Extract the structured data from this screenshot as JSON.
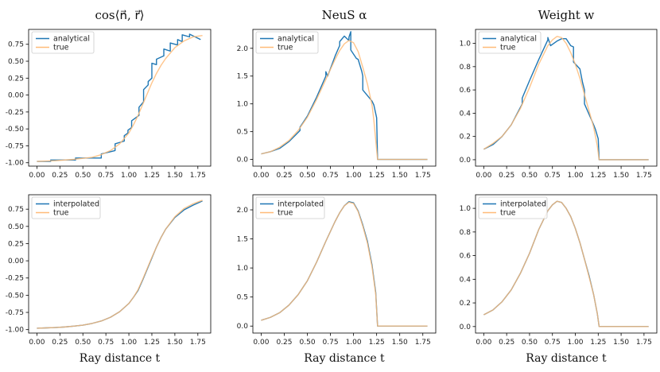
{
  "figure": {
    "column_titles": [
      "cos⟨n⃗, r⃗⟩",
      "NeuS α",
      "Weight w"
    ],
    "xlabel": "Ray distance t"
  },
  "colors": {
    "approx": "#1f77b4",
    "true": "#ffbb78"
  },
  "chart_data": [
    {
      "type": "line",
      "title": "cos⟨n⃗, r⃗⟩",
      "xlabel": "",
      "xlim": [
        -0.09,
        1.89
      ],
      "ylim": [
        -1.05,
        0.97
      ],
      "xticks": [
        "0.00",
        "0.25",
        "0.50",
        "0.75",
        "1.00",
        "1.25",
        "1.50",
        "1.75"
      ],
      "yticks": [
        "-1.00",
        "-0.75",
        "-0.50",
        "-0.25",
        "0.00",
        "0.25",
        "0.50",
        "0.75"
      ],
      "legend": [
        "analytical",
        "true"
      ],
      "series": [
        {
          "name": "analytical",
          "x": [
            0,
            0.15,
            0.15,
            0.42,
            0.42,
            0.7,
            0.7,
            0.85,
            0.85,
            0.95,
            0.95,
            0.99,
            0.99,
            1.03,
            1.03,
            1.11,
            1.11,
            1.16,
            1.16,
            1.21,
            1.21,
            1.25,
            1.25,
            1.3,
            1.3,
            1.38,
            1.38,
            1.45,
            1.45,
            1.53,
            1.53,
            1.58,
            1.58,
            1.66,
            1.66,
            1.72,
            1.72,
            1.78
          ],
          "y": [
            -0.98,
            -0.98,
            -0.96,
            -0.96,
            -0.93,
            -0.93,
            -0.87,
            -0.82,
            -0.72,
            -0.68,
            -0.6,
            -0.56,
            -0.52,
            -0.48,
            -0.38,
            -0.3,
            -0.18,
            -0.1,
            0.08,
            0.15,
            0.2,
            0.25,
            0.47,
            0.45,
            0.53,
            0.58,
            0.68,
            0.65,
            0.77,
            0.74,
            0.82,
            0.79,
            0.89,
            0.86,
            0.9,
            0.86,
            0.86,
            0.82
          ]
        },
        {
          "name": "true",
          "x": [
            0,
            0.2,
            0.4,
            0.6,
            0.7,
            0.8,
            0.9,
            1.0,
            1.05,
            1.1,
            1.15,
            1.2,
            1.25,
            1.3,
            1.35,
            1.4,
            1.5,
            1.6,
            1.7,
            1.8
          ],
          "y": [
            -0.98,
            -0.97,
            -0.95,
            -0.92,
            -0.88,
            -0.82,
            -0.72,
            -0.56,
            -0.44,
            -0.3,
            -0.14,
            0.02,
            0.18,
            0.32,
            0.44,
            0.54,
            0.7,
            0.8,
            0.86,
            0.88
          ]
        }
      ]
    },
    {
      "type": "line",
      "title": "NeuS α",
      "xlabel": "",
      "xlim": [
        -0.09,
        1.89
      ],
      "ylim": [
        -0.12,
        2.34
      ],
      "xticks": [
        "0.00",
        "0.25",
        "0.50",
        "0.75",
        "1.00",
        "1.25",
        "1.50",
        "1.75"
      ],
      "yticks": [
        "0.0",
        "0.5",
        "1.0",
        "1.5",
        "2.0"
      ],
      "legend": [
        "analytical",
        "true"
      ],
      "series": [
        {
          "name": "analytical",
          "x": [
            0,
            0.1,
            0.2,
            0.3,
            0.42,
            0.42,
            0.5,
            0.6,
            0.7,
            0.7,
            0.72,
            0.8,
            0.85,
            0.85,
            0.9,
            0.95,
            0.95,
            0.97,
            0.97,
            1.03,
            1.05,
            1.09,
            1.1,
            1.1,
            1.2,
            1.22,
            1.25,
            1.26,
            1.8
          ],
          "y": [
            0.1,
            0.14,
            0.2,
            0.32,
            0.52,
            0.58,
            0.78,
            1.12,
            1.5,
            1.58,
            1.5,
            1.86,
            2.05,
            2.12,
            2.22,
            2.14,
            2.2,
            2.3,
            1.97,
            1.82,
            1.8,
            1.58,
            1.5,
            1.25,
            1.05,
            0.98,
            0.75,
            0.0,
            0.0
          ]
        },
        {
          "name": "true",
          "x": [
            0,
            0.1,
            0.2,
            0.3,
            0.4,
            0.5,
            0.6,
            0.7,
            0.8,
            0.85,
            0.9,
            0.95,
            1.0,
            1.05,
            1.1,
            1.15,
            1.2,
            1.22,
            1.24,
            1.26,
            1.8
          ],
          "y": [
            0.1,
            0.14,
            0.22,
            0.34,
            0.52,
            0.76,
            1.08,
            1.44,
            1.8,
            1.96,
            2.08,
            2.14,
            2.1,
            1.94,
            1.66,
            1.36,
            0.98,
            0.7,
            0.35,
            0.0,
            0.0
          ]
        }
      ]
    },
    {
      "type": "line",
      "title": "Weight w",
      "xlabel": "",
      "xlim": [
        -0.09,
        1.89
      ],
      "ylim": [
        -0.055,
        1.12
      ],
      "xticks": [
        "0.00",
        "0.25",
        "0.50",
        "0.75",
        "1.00",
        "1.25",
        "1.50",
        "1.75"
      ],
      "yticks": [
        "0.0",
        "0.2",
        "0.4",
        "0.6",
        "0.8",
        "1.0"
      ],
      "legend": [
        "analytical",
        "true"
      ],
      "series": [
        {
          "name": "analytical",
          "x": [
            0,
            0.1,
            0.2,
            0.3,
            0.42,
            0.42,
            0.5,
            0.6,
            0.7,
            0.7,
            0.73,
            0.8,
            0.85,
            0.9,
            0.95,
            0.95,
            0.98,
            0.98,
            1.05,
            1.08,
            1.1,
            1.1,
            1.2,
            1.22,
            1.25,
            1.26,
            1.8
          ],
          "y": [
            0.09,
            0.13,
            0.2,
            0.3,
            0.48,
            0.53,
            0.68,
            0.86,
            1.03,
            1.05,
            0.98,
            1.02,
            1.04,
            1.04,
            0.98,
            0.98,
            0.97,
            0.84,
            0.78,
            0.66,
            0.6,
            0.48,
            0.3,
            0.26,
            0.18,
            0.0,
            0.0
          ]
        },
        {
          "name": "true",
          "x": [
            0,
            0.1,
            0.2,
            0.3,
            0.4,
            0.5,
            0.6,
            0.7,
            0.75,
            0.8,
            0.85,
            0.9,
            0.95,
            1.0,
            1.05,
            1.1,
            1.15,
            1.2,
            1.24,
            1.26,
            1.8
          ],
          "y": [
            0.09,
            0.14,
            0.2,
            0.3,
            0.44,
            0.62,
            0.82,
            0.98,
            1.03,
            1.06,
            1.05,
            1.0,
            0.92,
            0.82,
            0.7,
            0.56,
            0.42,
            0.28,
            0.12,
            0.0,
            0.0
          ]
        }
      ]
    },
    {
      "type": "line",
      "title": "",
      "xlabel": "Ray distance t",
      "xlim": [
        -0.09,
        1.89
      ],
      "ylim": [
        -1.05,
        0.96
      ],
      "xticks": [
        "0.00",
        "0.25",
        "0.50",
        "0.75",
        "1.00",
        "1.25",
        "1.50",
        "1.75"
      ],
      "yticks": [
        "-1.00",
        "-0.75",
        "-0.50",
        "-0.25",
        "0.00",
        "0.25",
        "0.50",
        "0.75"
      ],
      "legend": [
        "interpolated",
        "true"
      ],
      "series": [
        {
          "name": "interpolated",
          "x": [
            0,
            0.1,
            0.2,
            0.3,
            0.4,
            0.5,
            0.6,
            0.7,
            0.8,
            0.9,
            1.0,
            1.05,
            1.1,
            1.15,
            1.2,
            1.25,
            1.3,
            1.35,
            1.4,
            1.5,
            1.6,
            1.7,
            1.8
          ],
          "y": [
            -0.98,
            -0.975,
            -0.97,
            -0.962,
            -0.95,
            -0.935,
            -0.91,
            -0.875,
            -0.82,
            -0.74,
            -0.62,
            -0.53,
            -0.43,
            -0.28,
            -0.12,
            0.04,
            0.2,
            0.34,
            0.46,
            0.63,
            0.74,
            0.81,
            0.87
          ]
        },
        {
          "name": "true",
          "x": [
            0,
            0.1,
            0.2,
            0.3,
            0.4,
            0.5,
            0.6,
            0.7,
            0.8,
            0.9,
            1.0,
            1.05,
            1.1,
            1.15,
            1.2,
            1.25,
            1.3,
            1.35,
            1.4,
            1.5,
            1.6,
            1.7,
            1.8
          ],
          "y": [
            -0.98,
            -0.975,
            -0.97,
            -0.962,
            -0.95,
            -0.935,
            -0.91,
            -0.875,
            -0.82,
            -0.74,
            -0.62,
            -0.53,
            -0.42,
            -0.27,
            -0.11,
            0.05,
            0.2,
            0.34,
            0.46,
            0.64,
            0.76,
            0.83,
            0.88
          ]
        }
      ]
    },
    {
      "type": "line",
      "title": "",
      "xlabel": "Ray distance t",
      "xlim": [
        -0.09,
        1.89
      ],
      "ylim": [
        -0.12,
        2.26
      ],
      "xticks": [
        "0.00",
        "0.25",
        "0.50",
        "0.75",
        "1.00",
        "1.25",
        "1.50",
        "1.75"
      ],
      "yticks": [
        "0.0",
        "0.5",
        "1.0",
        "1.5",
        "2.0"
      ],
      "legend": [
        "interpolated",
        "true"
      ],
      "series": [
        {
          "name": "interpolated",
          "x": [
            0,
            0.1,
            0.2,
            0.3,
            0.4,
            0.5,
            0.6,
            0.7,
            0.8,
            0.85,
            0.9,
            0.95,
            1.0,
            1.05,
            1.1,
            1.15,
            1.2,
            1.24,
            1.26,
            1.8
          ],
          "y": [
            0.1,
            0.15,
            0.23,
            0.36,
            0.54,
            0.78,
            1.1,
            1.46,
            1.8,
            1.95,
            2.07,
            2.14,
            2.12,
            1.98,
            1.74,
            1.46,
            1.05,
            0.58,
            0.0,
            0.0
          ]
        },
        {
          "name": "true",
          "x": [
            0,
            0.1,
            0.2,
            0.3,
            0.4,
            0.5,
            0.6,
            0.7,
            0.8,
            0.85,
            0.9,
            0.95,
            1.0,
            1.05,
            1.1,
            1.15,
            1.2,
            1.24,
            1.26,
            1.8
          ],
          "y": [
            0.1,
            0.15,
            0.23,
            0.36,
            0.54,
            0.78,
            1.1,
            1.46,
            1.8,
            1.95,
            2.07,
            2.13,
            2.11,
            1.97,
            1.72,
            1.43,
            1.02,
            0.55,
            0.0,
            0.0
          ]
        }
      ]
    },
    {
      "type": "line",
      "title": "",
      "xlabel": "Ray distance t",
      "xlim": [
        -0.09,
        1.89
      ],
      "ylim": [
        -0.055,
        1.115
      ],
      "xticks": [
        "0.00",
        "0.25",
        "0.50",
        "0.75",
        "1.00",
        "1.25",
        "1.50",
        "1.75"
      ],
      "yticks": [
        "0.0",
        "0.2",
        "0.4",
        "0.6",
        "0.8",
        "1.0"
      ],
      "legend": [
        "interpolated",
        "true"
      ],
      "series": [
        {
          "name": "interpolated",
          "x": [
            0,
            0.1,
            0.2,
            0.3,
            0.4,
            0.5,
            0.6,
            0.7,
            0.75,
            0.8,
            0.85,
            0.9,
            0.95,
            1.0,
            1.05,
            1.1,
            1.15,
            1.2,
            1.24,
            1.26,
            1.8
          ],
          "y": [
            0.1,
            0.14,
            0.21,
            0.31,
            0.45,
            0.62,
            0.82,
            0.98,
            1.03,
            1.06,
            1.05,
            1.0,
            0.93,
            0.83,
            0.71,
            0.57,
            0.43,
            0.27,
            0.11,
            0.0,
            0.0
          ]
        },
        {
          "name": "true",
          "x": [
            0,
            0.1,
            0.2,
            0.3,
            0.4,
            0.5,
            0.6,
            0.7,
            0.75,
            0.8,
            0.85,
            0.9,
            0.95,
            1.0,
            1.05,
            1.1,
            1.15,
            1.2,
            1.24,
            1.26,
            1.8
          ],
          "y": [
            0.1,
            0.14,
            0.21,
            0.31,
            0.45,
            0.62,
            0.82,
            0.98,
            1.03,
            1.06,
            1.05,
            1.0,
            0.93,
            0.83,
            0.71,
            0.57,
            0.42,
            0.27,
            0.11,
            0.0,
            0.0
          ]
        }
      ]
    }
  ]
}
